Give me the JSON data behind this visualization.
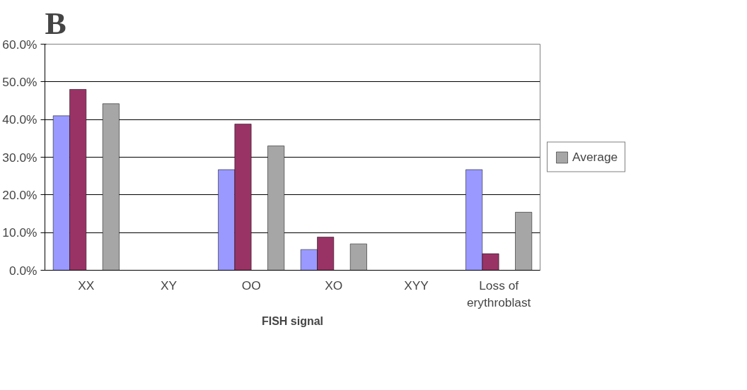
{
  "chart_data": {
    "type": "bar",
    "title": "B",
    "xlabel": "FISH signal",
    "categories": [
      "XX",
      "XY",
      "OO",
      "XO",
      "XYY",
      "Loss of erythroblast"
    ],
    "series": [
      {
        "color": "#9999ff",
        "values": [
          41.0,
          null,
          26.7,
          5.5,
          null,
          26.7
        ]
      },
      {
        "color": "#993366",
        "values": [
          48.0,
          null,
          38.8,
          8.8,
          null,
          4.4
        ]
      },
      {
        "color": "#ffffcc",
        "values": [
          null,
          null,
          null,
          null,
          null,
          null
        ]
      },
      {
        "name": "Average",
        "color": "#a6a6a6",
        "values": [
          44.2,
          null,
          33.0,
          7.0,
          null,
          15.4
        ]
      }
    ],
    "ylim": [
      0,
      60
    ],
    "yticks": [
      {
        "value": 0,
        "label": "0.0%"
      },
      {
        "value": 10,
        "label": "10.0%"
      },
      {
        "value": 20,
        "label": "20.0%"
      },
      {
        "value": 30,
        "label": "30.0%"
      },
      {
        "value": 40,
        "label": "40.0%"
      },
      {
        "value": 50,
        "label": "50.0%"
      },
      {
        "value": 60,
        "label": "60.0%"
      }
    ],
    "grid": "y",
    "legend": "right"
  }
}
